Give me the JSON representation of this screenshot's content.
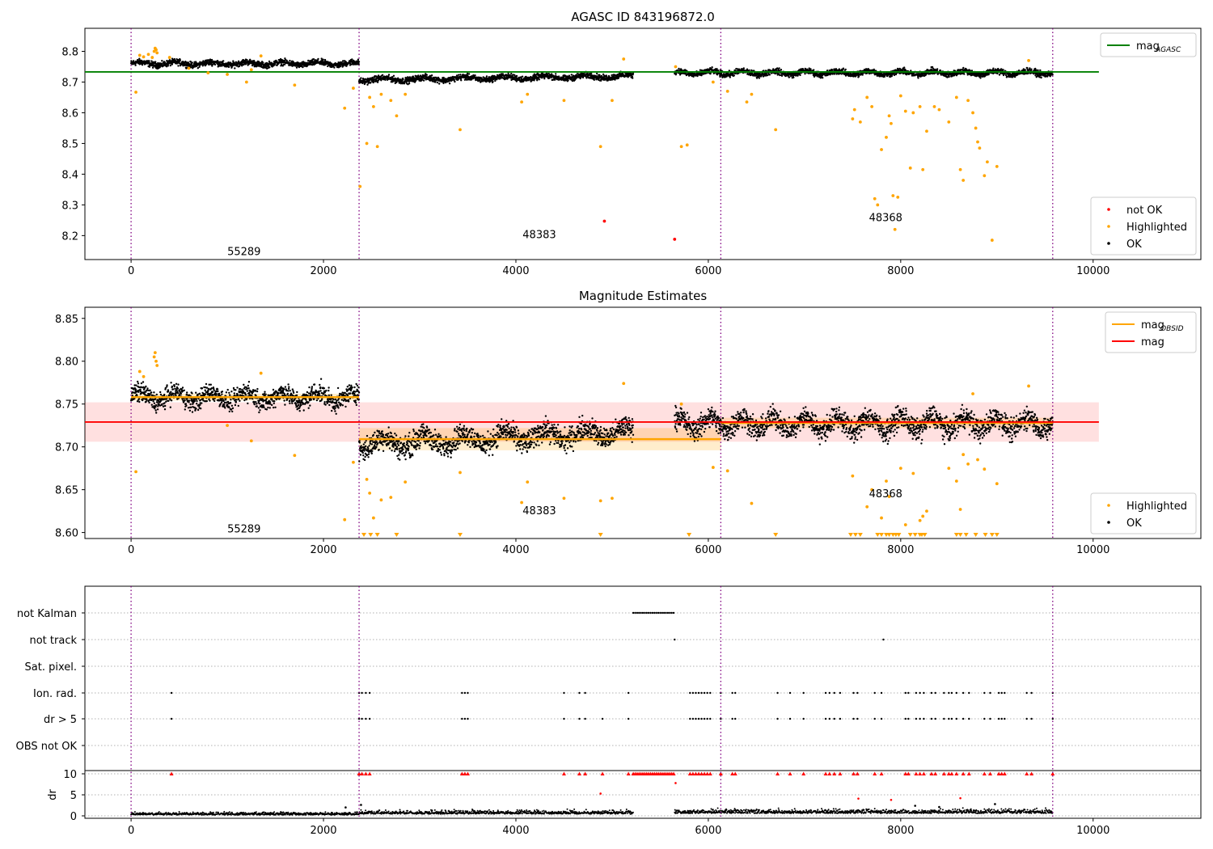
{
  "chart_data": [
    {
      "type": "scatter",
      "title": "AGASC ID 843196872.0",
      "xlabel": "",
      "ylabel": "",
      "xlim": [
        -480,
        11120
      ],
      "ylim": [
        8.122,
        8.875
      ],
      "xticks": [
        0,
        2000,
        4000,
        6000,
        8000,
        10000
      ],
      "yticks": [
        8.2,
        8.3,
        8.4,
        8.5,
        8.6,
        8.7,
        8.8
      ],
      "obsid_boundaries": [
        0,
        2370,
        6130,
        9580
      ],
      "annotations": [
        {
          "text": "55289",
          "x": 1000,
          "y": 8.15
        },
        {
          "text": "48383",
          "x": 4070,
          "y": 8.205
        },
        {
          "text": "48368",
          "x": 7670,
          "y": 8.26
        }
      ],
      "reference_lines": [
        {
          "name": "mag_AGASC",
          "y": 8.733,
          "x_range": [
            -480,
            10060
          ],
          "color": "#008000"
        }
      ],
      "ok_segments": [
        {
          "x": [
            0,
            2370
          ],
          "baseline": 8.76,
          "noise": 0.006,
          "period": 370,
          "amp": 0.005
        },
        {
          "x": [
            2370,
            5220
          ],
          "baseline": 8.707,
          "noise": 0.006,
          "period": 420,
          "amp": 0.005,
          "slope": 0.012
        },
        {
          "x": [
            5650,
            9580
          ],
          "baseline": 8.73,
          "noise": 0.006,
          "period": 330,
          "amp": 0.006
        }
      ],
      "highlighted": {
        "x": [
          50,
          90,
          130,
          180,
          220,
          240,
          250,
          260,
          270,
          400,
          600,
          800,
          1000,
          1200,
          1250,
          1350,
          1700,
          2220,
          2310,
          2380,
          2450,
          2480,
          2520,
          2560,
          2600,
          2700,
          2760,
          2850,
          3420,
          4060,
          4120,
          4500,
          4880,
          5000,
          5120,
          5660,
          5720,
          5780,
          6050,
          6200,
          6400,
          6450,
          6700,
          7500,
          7520,
          7580,
          7650,
          7700,
          7730,
          7760,
          7800,
          7850,
          7880,
          7900,
          7920,
          7940,
          7970,
          8000,
          8050,
          8100,
          8130,
          8200,
          8230,
          8270,
          8350,
          8400,
          8500,
          8580,
          8620,
          8650,
          8700,
          8750,
          8780,
          8800,
          8820,
          8870,
          8900,
          8950,
          9000,
          9330
        ],
        "y": [
          8.667,
          8.787,
          8.782,
          8.79,
          8.78,
          8.8,
          8.81,
          8.805,
          8.795,
          8.78,
          8.745,
          8.73,
          8.725,
          8.7,
          8.74,
          8.785,
          8.69,
          8.615,
          8.68,
          8.36,
          8.5,
          8.65,
          8.62,
          8.49,
          8.66,
          8.64,
          8.59,
          8.66,
          8.545,
          8.635,
          8.66,
          8.64,
          8.49,
          8.64,
          8.775,
          8.75,
          8.49,
          8.495,
          8.7,
          8.67,
          8.635,
          8.66,
          8.545,
          8.58,
          8.61,
          8.57,
          8.65,
          8.62,
          8.32,
          8.3,
          8.48,
          8.52,
          8.59,
          8.565,
          8.33,
          8.22,
          8.325,
          8.655,
          8.605,
          8.42,
          8.6,
          8.62,
          8.415,
          8.54,
          8.62,
          8.61,
          8.57,
          8.65,
          8.415,
          8.38,
          8.64,
          8.6,
          8.55,
          8.505,
          8.485,
          8.395,
          8.44,
          8.185,
          8.425,
          8.77
        ]
      },
      "not_ok": {
        "x": [
          4920,
          5650
        ],
        "y": [
          8.247,
          8.188
        ]
      },
      "legends": [
        {
          "position": "upper-right",
          "entries": [
            {
              "label": "mag",
              "sub": "AGASC",
              "color": "#008000",
              "kind": "line"
            }
          ]
        },
        {
          "position": "lower-right",
          "entries": [
            {
              "label": "not OK",
              "color": "#ff0000",
              "kind": "dot"
            },
            {
              "label": "Highlighted",
              "color": "#ffa500",
              "kind": "dot"
            },
            {
              "label": "OK",
              "color": "#000000",
              "kind": "dot"
            }
          ]
        }
      ]
    },
    {
      "type": "scatter",
      "title": "Magnitude Estimates",
      "xlabel": "",
      "ylabel": "",
      "xlim": [
        -480,
        11120
      ],
      "ylim": [
        8.593,
        8.863
      ],
      "xticks": [
        0,
        2000,
        4000,
        6000,
        8000,
        10000
      ],
      "yticks": [
        8.6,
        8.65,
        8.7,
        8.75,
        8.8,
        8.85
      ],
      "obsid_boundaries": [
        0,
        2370,
        6130,
        9580
      ],
      "annotations": [
        {
          "text": "55289",
          "x": 1000,
          "y": 8.605
        },
        {
          "text": "48383",
          "x": 4070,
          "y": 8.626
        },
        {
          "text": "48368",
          "x": 7670,
          "y": 8.646
        }
      ],
      "mag_band": {
        "y": 8.729,
        "low": 8.706,
        "high": 8.752,
        "x_range": [
          -480,
          10060
        ],
        "color": "#ff0000"
      },
      "mag_obsid": [
        {
          "x": [
            0,
            2370
          ],
          "y": 8.758,
          "low": 8.754,
          "high": 8.762
        },
        {
          "x": [
            2370,
            6130
          ],
          "y": 8.709,
          "low": 8.696,
          "high": 8.722
        },
        {
          "x": [
            6130,
            9580
          ],
          "y": 8.728,
          "low": 8.722,
          "high": 8.734
        }
      ],
      "ok_segments": [
        {
          "x": [
            0,
            2370
          ],
          "baseline": 8.758,
          "noise": 0.007,
          "period": 370,
          "amp": 0.006
        },
        {
          "x": [
            2370,
            5220
          ],
          "baseline": 8.703,
          "noise": 0.008,
          "period": 420,
          "amp": 0.007,
          "slope": 0.015
        },
        {
          "x": [
            5650,
            9580
          ],
          "baseline": 8.727,
          "noise": 0.008,
          "period": 330,
          "amp": 0.008
        }
      ],
      "highlighted": {
        "x": [
          50,
          90,
          130,
          240,
          250,
          260,
          270,
          1000,
          1250,
          1350,
          1700,
          2220,
          2310,
          2450,
          2480,
          2520,
          2600,
          2700,
          2850,
          3420,
          4060,
          4120,
          4500,
          4880,
          5000,
          5120,
          5720,
          6050,
          6200,
          6450,
          7500,
          7650,
          7700,
          7800,
          7850,
          7880,
          8000,
          8050,
          8130,
          8200,
          8230,
          8270,
          8500,
          8580,
          8620,
          8650,
          8700,
          8750,
          8800,
          8870,
          9000,
          9330
        ],
        "y": [
          8.671,
          8.788,
          8.782,
          8.805,
          8.81,
          8.8,
          8.795,
          8.725,
          8.707,
          8.786,
          8.69,
          8.615,
          8.682,
          8.662,
          8.646,
          8.617,
          8.638,
          8.641,
          8.659,
          8.67,
          8.635,
          8.659,
          8.64,
          8.637,
          8.64,
          8.774,
          8.75,
          8.676,
          8.672,
          8.634,
          8.666,
          8.63,
          8.65,
          8.617,
          8.66,
          8.642,
          8.675,
          8.609,
          8.669,
          8.614,
          8.619,
          8.625,
          8.675,
          8.66,
          8.627,
          8.691,
          8.68,
          8.762,
          8.685,
          8.674,
          8.657,
          8.771
        ]
      },
      "below_range_x": [
        2420,
        2490,
        2560,
        2760,
        3420,
        4880,
        5800,
        6700,
        7480,
        7530,
        7580,
        7760,
        7800,
        7850,
        7880,
        7920,
        7950,
        7980,
        8100,
        8150,
        8200,
        8220,
        8250,
        8580,
        8620,
        8680,
        8780,
        8880,
        8950,
        9000
      ],
      "legends": [
        {
          "position": "upper-right",
          "entries": [
            {
              "label": "mag",
              "sub": "OBSID",
              "color": "#ffa500",
              "kind": "line"
            },
            {
              "label": "mag",
              "sub": "",
              "color": "#ff0000",
              "kind": "line"
            }
          ]
        },
        {
          "position": "lower-right",
          "entries": [
            {
              "label": "Highlighted",
              "color": "#ffa500",
              "kind": "dot"
            },
            {
              "label": "OK",
              "color": "#000000",
              "kind": "dot"
            }
          ]
        }
      ]
    },
    {
      "type": "scatter",
      "title": "",
      "xlabel": "",
      "xlim": [
        -480,
        11120
      ],
      "xticks": [
        0,
        2000,
        4000,
        6000,
        8000,
        10000
      ],
      "obsid_boundaries": [
        0,
        2370,
        6130,
        9580
      ],
      "flag_categories": [
        "not Kalman",
        "not track",
        "Sat. pixel.",
        "Ion. rad.",
        "dr > 5",
        "OBS not OK"
      ],
      "flags": {
        "not Kalman": [
          5220,
          5240,
          5260,
          5280,
          5300,
          5320,
          5340,
          5360,
          5380,
          5400,
          5420,
          5440,
          5460,
          5480,
          5500,
          5520,
          5540,
          5560,
          5580,
          5600,
          5620,
          5640
        ],
        "not track": [
          5650,
          7820
        ],
        "Sat. pixel.": [],
        "Ion. rad.": [
          420,
          2370,
          2400,
          2440,
          2480,
          3440,
          3470,
          3500,
          4500,
          4660,
          4720,
          5170,
          5810,
          5840,
          5870,
          5900,
          5930,
          5960,
          5990,
          6020,
          6130,
          6250,
          6280,
          6720,
          6850,
          6990,
          7220,
          7260,
          7310,
          7370,
          7510,
          7550,
          7730,
          7800,
          8050,
          8080,
          8160,
          8200,
          8240,
          8320,
          8360,
          8450,
          8500,
          8530,
          8580,
          8650,
          8710,
          8870,
          8930,
          9020,
          9050,
          9080,
          9310,
          9360,
          9580
        ],
        "dr > 5": [
          420,
          2370,
          2400,
          2440,
          2480,
          3440,
          3470,
          3500,
          4500,
          4660,
          4720,
          4900,
          5170,
          5810,
          5840,
          5870,
          5900,
          5930,
          5960,
          5990,
          6020,
          6130,
          6250,
          6280,
          6720,
          6850,
          6990,
          7220,
          7260,
          7310,
          7370,
          7510,
          7550,
          7730,
          7800,
          8050,
          8080,
          8160,
          8200,
          8240,
          8320,
          8360,
          8450,
          8500,
          8530,
          8580,
          8650,
          8710,
          8870,
          8930,
          9020,
          9050,
          9080,
          9310,
          9360,
          9580
        ],
        "OBS not OK": []
      },
      "dr": {
        "ylabel": "dr",
        "ylim": [
          -0.6,
          10.5
        ],
        "yticks": [
          0,
          5,
          10
        ],
        "clip_value": 10,
        "ok_segments": [
          {
            "x": [
              0,
              2370
            ],
            "mean": 0.35,
            "spread": 0.6
          },
          {
            "x": [
              2370,
              5220
            ],
            "mean": 0.55,
            "spread": 0.8
          },
          {
            "x": [
              5650,
              9580
            ],
            "mean": 0.7,
            "spread": 0.9
          }
        ],
        "high": {
          "x": [
            4880,
            5660,
            7560,
            7900,
            8620,
            8980,
            2230,
            2390,
            8150,
            8400
          ],
          "y": [
            5.3,
            7.8,
            4.1,
            3.8,
            4.2,
            2.8,
            2.0,
            2.6,
            2.4,
            2.1
          ]
        }
      }
    }
  ]
}
